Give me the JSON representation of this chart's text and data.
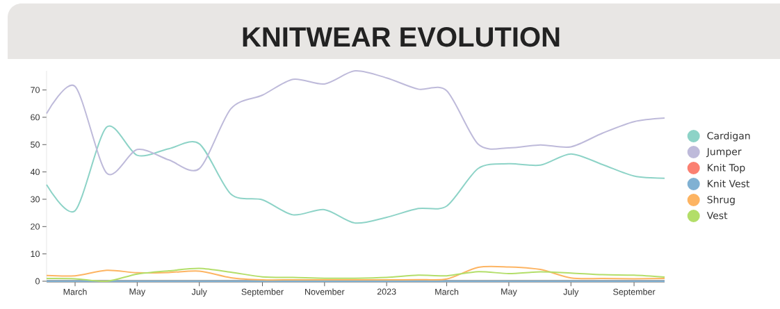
{
  "chart_data": {
    "type": "line",
    "title": "KNITWEAR EVOLUTION",
    "x": [
      "2022-02",
      "2022-03",
      "2022-04",
      "2022-05",
      "2022-06",
      "2022-07",
      "2022-08",
      "2022-09",
      "2022-10",
      "2022-11",
      "2022-12",
      "2023-01",
      "2023-02",
      "2023-03",
      "2023-04",
      "2023-05",
      "2023-06",
      "2023-07",
      "2023-08",
      "2023-09",
      "2023-10"
    ],
    "series": [
      {
        "name": "Cardigan",
        "color": "#8dd3c7",
        "values": [
          35.3,
          25.8,
          56.4,
          46.1,
          48.5,
          50.3,
          31.9,
          29.8,
          24.3,
          26.2,
          21.3,
          23.4,
          26.6,
          27.5,
          41.3,
          43.0,
          42.5,
          46.6,
          42.7,
          38.5,
          37.7
        ]
      },
      {
        "name": "Jumper",
        "color": "#bebada",
        "values": [
          61.4,
          71.3,
          39.6,
          48.2,
          44.4,
          41.2,
          63.1,
          68.1,
          73.9,
          72.2,
          77.0,
          74.4,
          70.3,
          69.7,
          50.1,
          48.8,
          49.9,
          49.2,
          54.2,
          58.4,
          59.7
        ]
      },
      {
        "name": "Knit Top",
        "color": "#fb8072",
        "values": [
          null,
          null,
          null,
          null,
          null,
          null,
          null,
          null,
          null,
          null,
          null,
          null,
          null,
          null,
          null,
          null,
          null,
          null,
          null,
          null,
          null
        ]
      },
      {
        "name": "Knit Vest",
        "color": "#80b1d3",
        "values": [
          0,
          0,
          0,
          0,
          0,
          0,
          0,
          0,
          0,
          0,
          0,
          0,
          0,
          0,
          0,
          0,
          0,
          0,
          0,
          0,
          0
        ]
      },
      {
        "name": "Shrug",
        "color": "#fdb462",
        "values": [
          2.1,
          2.0,
          4.0,
          3.1,
          3.2,
          3.7,
          1.3,
          0.5,
          0.5,
          0.5,
          0.5,
          0.5,
          0.6,
          0.8,
          5.1,
          5.2,
          4.3,
          1.2,
          1.0,
          0.9,
          1.0
        ]
      },
      {
        "name": "Vest",
        "color": "#b3de69",
        "values": [
          1.0,
          0.9,
          0.0,
          2.6,
          3.8,
          4.7,
          3.3,
          1.6,
          1.4,
          1.1,
          1.1,
          1.4,
          2.2,
          2.0,
          3.5,
          2.8,
          3.4,
          3.0,
          2.4,
          2.2,
          1.5
        ]
      }
    ],
    "xlim": [
      "2022-02",
      "2023-10"
    ],
    "xticks": [
      {
        "value": "2022-03",
        "label": "March"
      },
      {
        "value": "2022-05",
        "label": "May"
      },
      {
        "value": "2022-07",
        "label": "July"
      },
      {
        "value": "2022-09",
        "label": "September"
      },
      {
        "value": "2022-11",
        "label": "November"
      },
      {
        "value": "2023-01",
        "label": "2023"
      },
      {
        "value": "2023-03",
        "label": "March"
      },
      {
        "value": "2023-05",
        "label": "May"
      },
      {
        "value": "2023-07",
        "label": "July"
      },
      {
        "value": "2023-09",
        "label": "September"
      }
    ],
    "ylim": [
      0,
      77
    ],
    "yticks": [
      0,
      10,
      20,
      30,
      40,
      50,
      60,
      70
    ],
    "legend": "right",
    "line_style": "solid"
  }
}
